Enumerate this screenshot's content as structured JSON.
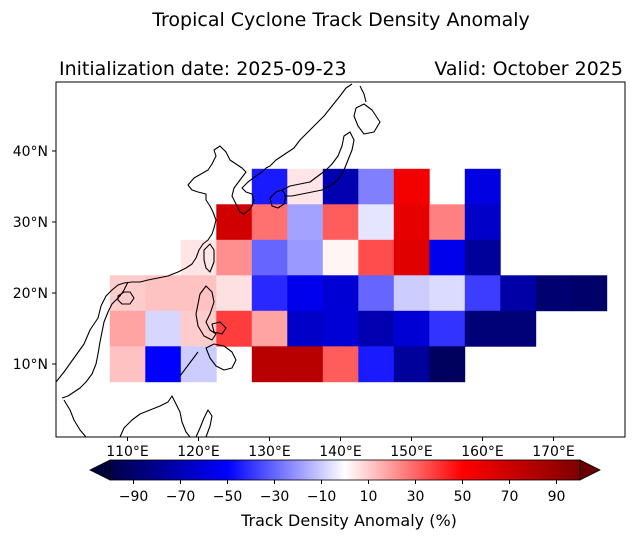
{
  "chart_data": {
    "type": "heatmap",
    "title": "Tropical Cyclone Track Density Anomaly",
    "subtitle_left": "Initialization date: 2025-09-23",
    "subtitle_right": "Valid: October 2025",
    "xlabel": "",
    "ylabel": "",
    "x_range": [
      100,
      180
    ],
    "y_range": [
      0,
      50
    ],
    "x_ticks": [
      110,
      120,
      130,
      140,
      150,
      160,
      170
    ],
    "x_tick_labels": [
      "110°E",
      "120°E",
      "130°E",
      "140°E",
      "150°E",
      "160°E",
      "170°E"
    ],
    "y_ticks": [
      10,
      20,
      30,
      40
    ],
    "y_tick_labels": [
      "10°N",
      "20°N",
      "30°N",
      "40°N"
    ],
    "cell_size_deg": 5,
    "cells": [
      {
        "lon": 125,
        "lat": 30,
        "value": 68
      },
      {
        "lon": 130,
        "lat": 35,
        "value": -45
      },
      {
        "lon": 130,
        "lat": 30,
        "value": 28
      },
      {
        "lon": 135,
        "lat": 35,
        "value": 5
      },
      {
        "lon": 135,
        "lat": 30,
        "value": -18
      },
      {
        "lon": 140,
        "lat": 35,
        "value": -72
      },
      {
        "lon": 140,
        "lat": 30,
        "value": 32
      },
      {
        "lon": 145,
        "lat": 35,
        "value": -25
      },
      {
        "lon": 145,
        "lat": 30,
        "value": -5
      },
      {
        "lon": 150,
        "lat": 35,
        "value": 55
      },
      {
        "lon": 150,
        "lat": 30,
        "value": 60
      },
      {
        "lon": 155,
        "lat": 30,
        "value": 25
      },
      {
        "lon": 160,
        "lat": 35,
        "value": -58
      },
      {
        "lon": 160,
        "lat": 30,
        "value": -65
      },
      {
        "lon": 120,
        "lat": 25,
        "value": 5
      },
      {
        "lon": 125,
        "lat": 25,
        "value": 22
      },
      {
        "lon": 130,
        "lat": 25,
        "value": -30
      },
      {
        "lon": 135,
        "lat": 25,
        "value": -20
      },
      {
        "lon": 140,
        "lat": 25,
        "value": 2
      },
      {
        "lon": 145,
        "lat": 25,
        "value": 35
      },
      {
        "lon": 150,
        "lat": 25,
        "value": 62
      },
      {
        "lon": 155,
        "lat": 25,
        "value": -55
      },
      {
        "lon": 160,
        "lat": 25,
        "value": -78
      },
      {
        "lon": 110,
        "lat": 20,
        "value": 10
      },
      {
        "lon": 115,
        "lat": 20,
        "value": 12
      },
      {
        "lon": 120,
        "lat": 20,
        "value": 12
      },
      {
        "lon": 125,
        "lat": 20,
        "value": 6
      },
      {
        "lon": 130,
        "lat": 20,
        "value": -42
      },
      {
        "lon": 135,
        "lat": 20,
        "value": -55
      },
      {
        "lon": 140,
        "lat": 20,
        "value": -62
      },
      {
        "lon": 145,
        "lat": 20,
        "value": -30
      },
      {
        "lon": 150,
        "lat": 20,
        "value": -10
      },
      {
        "lon": 155,
        "lat": 20,
        "value": -7
      },
      {
        "lon": 160,
        "lat": 20,
        "value": -38
      },
      {
        "lon": 165,
        "lat": 20,
        "value": -75
      },
      {
        "lon": 170,
        "lat": 20,
        "value": -90
      },
      {
        "lon": 175,
        "lat": 20,
        "value": -92
      },
      {
        "lon": 110,
        "lat": 15,
        "value": 18
      },
      {
        "lon": 115,
        "lat": 15,
        "value": -8
      },
      {
        "lon": 120,
        "lat": 15,
        "value": 10
      },
      {
        "lon": 125,
        "lat": 15,
        "value": 38
      },
      {
        "lon": 130,
        "lat": 15,
        "value": 18
      },
      {
        "lon": 135,
        "lat": 15,
        "value": -65
      },
      {
        "lon": 140,
        "lat": 15,
        "value": -62
      },
      {
        "lon": 145,
        "lat": 15,
        "value": -72
      },
      {
        "lon": 150,
        "lat": 15,
        "value": -62
      },
      {
        "lon": 155,
        "lat": 15,
        "value": -40
      },
      {
        "lon": 160,
        "lat": 15,
        "value": -88
      },
      {
        "lon": 165,
        "lat": 15,
        "value": -88
      },
      {
        "lon": 110,
        "lat": 10,
        "value": 12
      },
      {
        "lon": 115,
        "lat": 10,
        "value": -50
      },
      {
        "lon": 120,
        "lat": 10,
        "value": -10
      },
      {
        "lon": 130,
        "lat": 10,
        "value": 78
      },
      {
        "lon": 135,
        "lat": 10,
        "value": 78
      },
      {
        "lon": 140,
        "lat": 10,
        "value": 32
      },
      {
        "lon": 145,
        "lat": 10,
        "value": -45
      },
      {
        "lon": 150,
        "lat": 10,
        "value": -78
      },
      {
        "lon": 155,
        "lat": 10,
        "value": -95
      }
    ],
    "colorbar": {
      "label": "Track Density Anomaly (%)",
      "range": [
        -100,
        100
      ],
      "ticks": [
        -90,
        -70,
        -50,
        -30,
        -10,
        10,
        30,
        50,
        70,
        90
      ],
      "tick_labels": [
        "−90",
        "−70",
        "−50",
        "−30",
        "−10",
        "10",
        "30",
        "50",
        "70",
        "90"
      ],
      "colormap": "seismic",
      "extend": "both"
    }
  },
  "colors": {
    "coastline": "#000000",
    "frame": "#000000",
    "background": "#ffffff"
  }
}
